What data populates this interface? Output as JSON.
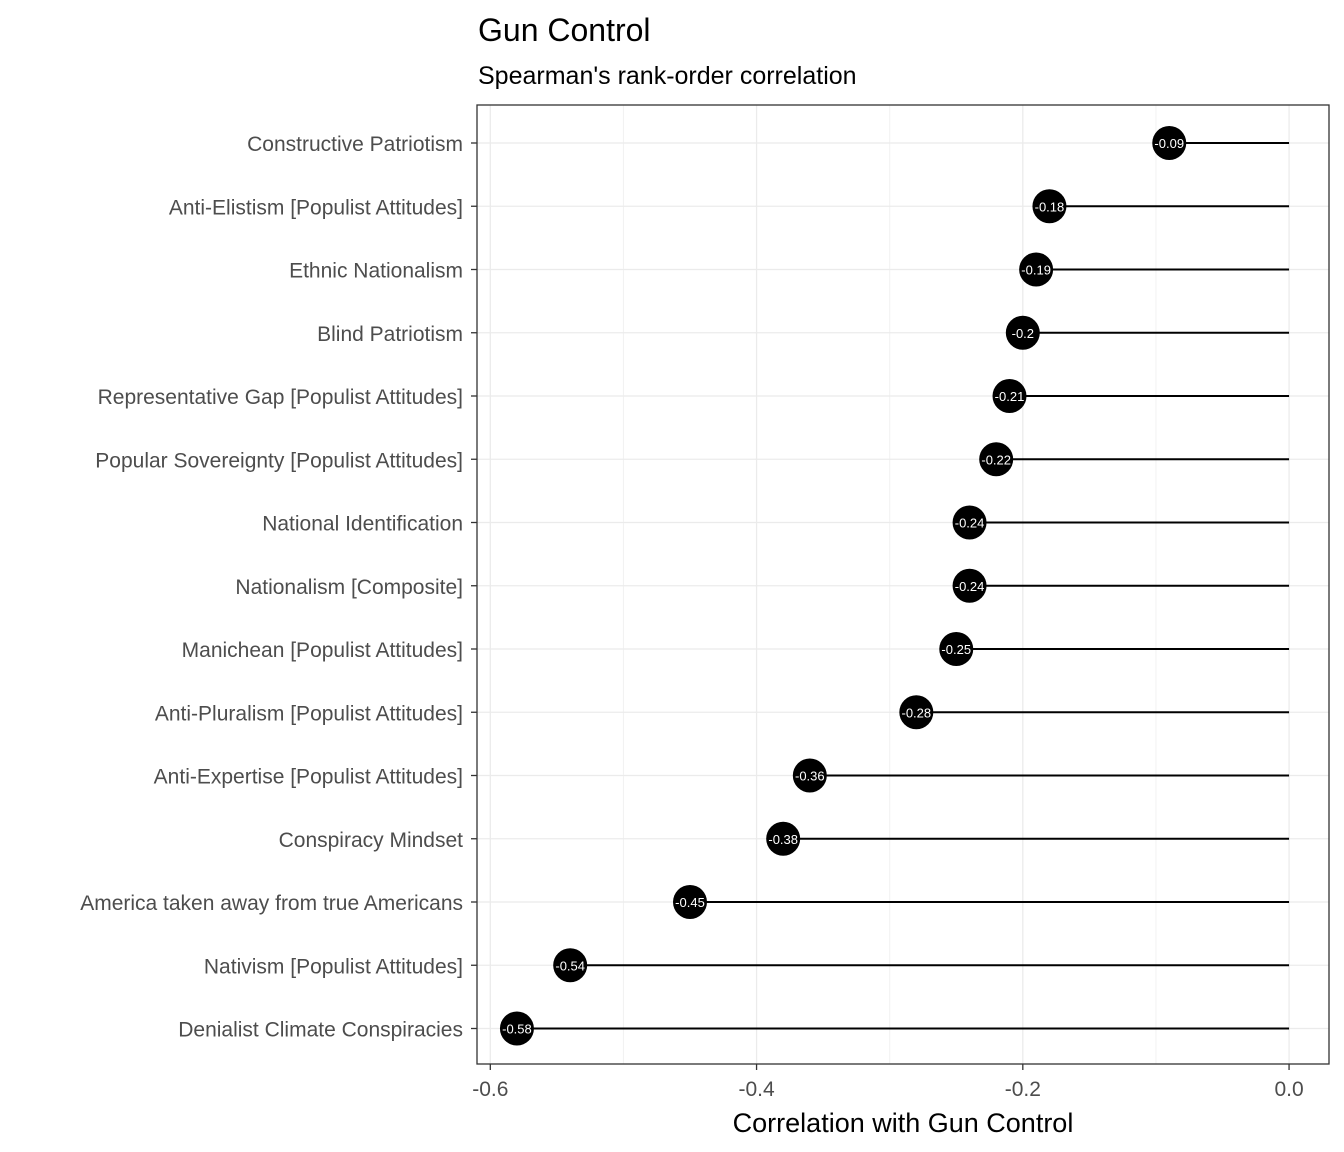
{
  "chart_data": {
    "type": "lollipop",
    "title": "Gun Control",
    "subtitle": "Spearman's rank-order correlation",
    "xlabel": "Correlation with Gun Control",
    "ylabel": "",
    "xlim": [
      -0.61,
      0.03
    ],
    "xticks": [
      -0.6,
      -0.4,
      -0.2,
      0.0
    ],
    "xtick_labels": [
      "-0.6",
      "-0.4",
      "-0.2",
      "0.0"
    ],
    "grid": true,
    "point_color": "#000000",
    "label_color": "#ffffff",
    "items": [
      {
        "label": "Constructive Patriotism",
        "value": -0.09,
        "value_label": "-0.09"
      },
      {
        "label": "Anti-Elistism [Populist Attitudes]",
        "value": -0.18,
        "value_label": "-0.18"
      },
      {
        "label": "Ethnic Nationalism",
        "value": -0.19,
        "value_label": "-0.19"
      },
      {
        "label": "Blind Patriotism",
        "value": -0.2,
        "value_label": "-0.2"
      },
      {
        "label": "Representative Gap [Populist Attitudes]",
        "value": -0.21,
        "value_label": "-0.21"
      },
      {
        "label": "Popular Sovereignty [Populist Attitudes]",
        "value": -0.22,
        "value_label": "-0.22"
      },
      {
        "label": "National Identification",
        "value": -0.24,
        "value_label": "-0.24"
      },
      {
        "label": "Nationalism [Composite]",
        "value": -0.24,
        "value_label": "-0.24"
      },
      {
        "label": "Manichean [Populist Attitudes]",
        "value": -0.25,
        "value_label": "-0.25"
      },
      {
        "label": "Anti-Pluralism [Populist Attitudes]",
        "value": -0.28,
        "value_label": "-0.28"
      },
      {
        "label": "Anti-Expertise [Populist Attitudes]",
        "value": -0.36,
        "value_label": "-0.36"
      },
      {
        "label": "Conspiracy Mindset",
        "value": -0.38,
        "value_label": "-0.38"
      },
      {
        "label": "America taken away from true Americans",
        "value": -0.45,
        "value_label": "-0.45"
      },
      {
        "label": "Nativism [Populist Attitudes]",
        "value": -0.54,
        "value_label": "-0.54"
      },
      {
        "label": "Denialist Climate Conspiracies",
        "value": -0.58,
        "value_label": "-0.58"
      }
    ]
  }
}
